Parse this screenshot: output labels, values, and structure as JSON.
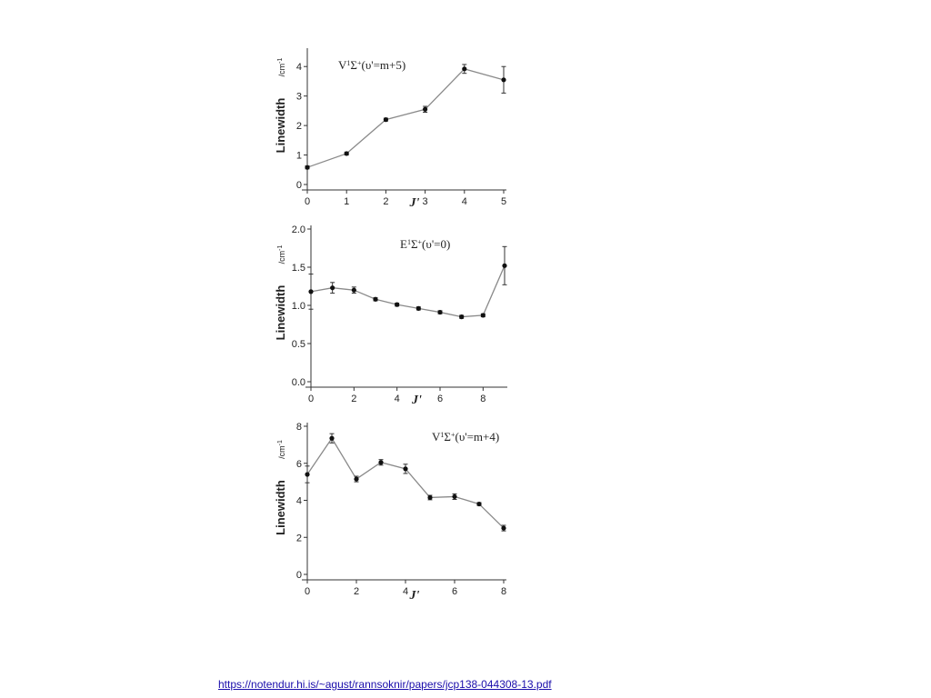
{
  "source_link": "https://notendur.hi.is/~agust/rannsoknir/papers/jcp138-044308-13.pdf",
  "chart_data": [
    {
      "type": "line",
      "annotation": {
        "pre": "V",
        "sup1": "1",
        "mid": "Σ",
        "sup2": "+",
        "post": "(υ'=m+5)"
      },
      "ylabel": "Linewidth",
      "yunit": {
        "base": "/cm",
        "sup": "-1"
      },
      "xlabel": "J'",
      "xlim": [
        0,
        5
      ],
      "ylim": [
        0,
        4.5
      ],
      "xticks": [
        0,
        1,
        2,
        3,
        4,
        5
      ],
      "xtick_labels": [
        "0",
        "1",
        "2",
        "3",
        "4",
        "5"
      ],
      "yticks": [
        0,
        1,
        2,
        3,
        4
      ],
      "ytick_labels": [
        "0",
        "1",
        "2",
        "3",
        "4"
      ],
      "x": [
        0,
        1,
        2,
        3,
        4,
        5
      ],
      "y": [
        0.58,
        1.05,
        2.2,
        2.55,
        3.92,
        3.55
      ],
      "err": [
        0.05,
        0.05,
        0.05,
        0.1,
        0.15,
        0.45
      ]
    },
    {
      "type": "line",
      "annotation": {
        "pre": "E",
        "sup1": "1",
        "mid": "Σ",
        "sup2": "+",
        "post": "(υ'=0)"
      },
      "ylabel": "Linewidth",
      "yunit": {
        "base": "/cm",
        "sup": "-1"
      },
      "xlabel": "J'",
      "xlim": [
        0,
        9
      ],
      "ylim": [
        0,
        2.0
      ],
      "xticks": [
        0,
        2,
        4,
        6,
        8
      ],
      "xtick_labels": [
        "0",
        "2",
        "4",
        "6",
        "8"
      ],
      "yticks": [
        0,
        0.5,
        1.0,
        1.5,
        2.0
      ],
      "ytick_labels": [
        "0.0",
        "0.5",
        "1.0",
        "1.5",
        "2.0"
      ],
      "x": [
        0,
        1,
        2,
        3,
        4,
        5,
        6,
        7,
        8,
        9
      ],
      "y": [
        1.18,
        1.23,
        1.2,
        1.08,
        1.01,
        0.96,
        0.91,
        0.85,
        0.87,
        1.52
      ],
      "err": [
        0.23,
        0.07,
        0.04,
        0.02,
        0.02,
        0.02,
        0.02,
        0.02,
        0.02,
        0.25
      ]
    },
    {
      "type": "line",
      "annotation": {
        "pre": "V",
        "sup1": "1",
        "mid": "Σ",
        "sup2": "+",
        "post": "(υ'=m+4)"
      },
      "ylabel": "Linewidth",
      "yunit": {
        "base": "/cm",
        "sup": "-1"
      },
      "xlabel": "J'",
      "xlim": [
        0,
        8
      ],
      "ylim": [
        0,
        8
      ],
      "xticks": [
        0,
        2,
        4,
        6,
        8
      ],
      "xtick_labels": [
        "0",
        "2",
        "4",
        "6",
        "8"
      ],
      "yticks": [
        0,
        2,
        4,
        6,
        8
      ],
      "ytick_labels": [
        "0",
        "2",
        "4",
        "6",
        "8"
      ],
      "x": [
        0,
        1,
        2,
        3,
        4,
        5,
        6,
        7,
        8
      ],
      "y": [
        5.4,
        7.35,
        5.15,
        6.05,
        5.7,
        4.15,
        4.2,
        3.8,
        2.5
      ],
      "err": [
        0.45,
        0.25,
        0.15,
        0.15,
        0.25,
        0.12,
        0.15,
        0.08,
        0.15
      ]
    }
  ]
}
